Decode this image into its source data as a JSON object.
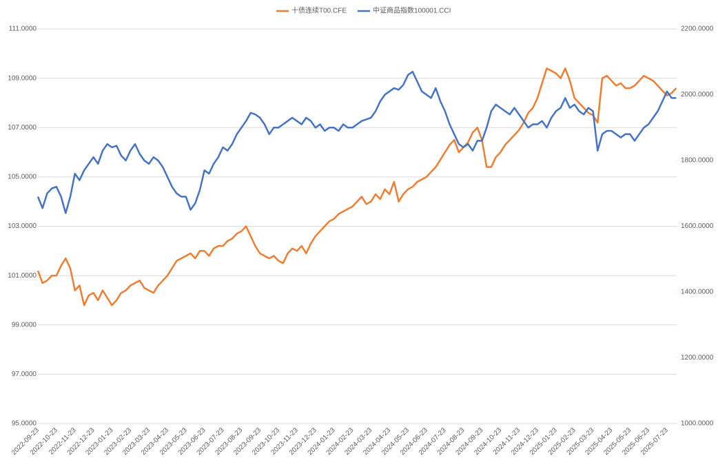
{
  "chart_data": {
    "type": "line",
    "categories": [
      "2022-09-23",
      null,
      null,
      null,
      "2022-10-23",
      null,
      null,
      null,
      "2022-11-23",
      null,
      null,
      null,
      "2022-12-23",
      null,
      null,
      null,
      "2023-01-23",
      null,
      null,
      null,
      "2023-02-23",
      null,
      null,
      null,
      "2023-03-23",
      null,
      null,
      null,
      "2023-04-23",
      null,
      null,
      null,
      "2023-05-23",
      null,
      null,
      null,
      "2023-06-23",
      null,
      null,
      null,
      "2023-07-23",
      null,
      null,
      null,
      "2023-08-23",
      null,
      null,
      null,
      "2023-09-23",
      null,
      null,
      null,
      "2023-10-23",
      null,
      null,
      null,
      "2023-11-23",
      null,
      null,
      null,
      "2023-12-23",
      null,
      null,
      null,
      "2024-01-23",
      null,
      null,
      null,
      "2024-02-23",
      null,
      null,
      null,
      "2024-03-23",
      null,
      null,
      null,
      "2024-04-23",
      null,
      null,
      null,
      "2024-05-23",
      null,
      null,
      null,
      "2024-06-23",
      null,
      null,
      null,
      "2024-07-23",
      null,
      null,
      null,
      "2024-08-23",
      null,
      null,
      null,
      "2024-09-23",
      null,
      null,
      null,
      "2024-10-23",
      null,
      null,
      null,
      "2024-11-23",
      null,
      null,
      null,
      "2024-12-23",
      null,
      null,
      null,
      "2025-01-23",
      null,
      null,
      null,
      "2025-02-23",
      null,
      null,
      null,
      "2025-03-23",
      null,
      null,
      null,
      "2025-04-23",
      null,
      null,
      null,
      "2025-05-23",
      null,
      null,
      null,
      "2025-06-23",
      null,
      null,
      null,
      "2025-07-23",
      null,
      null
    ],
    "series": [
      {
        "name": "十债连续T00.CFE",
        "color": "#ed7d31",
        "axis": "y",
        "values": [
          101.2,
          100.7,
          100.8,
          101.0,
          101.0,
          101.4,
          101.7,
          101.3,
          100.4,
          100.6,
          99.8,
          100.2,
          100.3,
          100.0,
          100.4,
          100.1,
          99.8,
          100.0,
          100.3,
          100.4,
          100.6,
          100.7,
          100.8,
          100.5,
          100.4,
          100.3,
          100.6,
          100.8,
          101.0,
          101.3,
          101.6,
          101.7,
          101.8,
          101.9,
          101.7,
          102.0,
          102.0,
          101.8,
          102.1,
          102.2,
          102.2,
          102.4,
          102.5,
          102.7,
          102.8,
          103.0,
          102.6,
          102.2,
          101.9,
          101.8,
          101.7,
          101.8,
          101.6,
          101.5,
          101.9,
          102.1,
          102.0,
          102.2,
          101.9,
          102.3,
          102.6,
          102.8,
          103.0,
          103.2,
          103.3,
          103.5,
          103.6,
          103.7,
          103.8,
          104.0,
          104.2,
          103.9,
          104.0,
          104.3,
          104.1,
          104.5,
          104.3,
          104.8,
          104.0,
          104.3,
          104.5,
          104.6,
          104.8,
          104.9,
          105.0,
          105.2,
          105.4,
          105.7,
          106.0,
          106.3,
          106.5,
          106.0,
          106.2,
          106.4,
          106.8,
          107.0,
          106.5,
          105.4,
          105.4,
          105.8,
          106.0,
          106.3,
          106.5,
          106.7,
          106.9,
          107.2,
          107.6,
          107.8,
          108.2,
          108.8,
          109.4,
          109.3,
          109.2,
          109.0,
          109.4,
          108.9,
          108.2,
          108.0,
          107.8,
          107.6,
          107.5,
          107.2,
          109.0,
          109.1,
          108.9,
          108.7,
          108.8,
          108.6,
          108.6,
          108.7,
          108.9,
          109.1,
          109.0,
          108.9,
          108.7,
          108.5,
          108.3,
          108.4,
          108.6
        ]
      },
      {
        "name": "中证商品指数100001.CCI",
        "color": "#4472c4",
        "axis": "y2",
        "values": [
          1690,
          1655,
          1700,
          1715,
          1720,
          1690,
          1640,
          1690,
          1760,
          1740,
          1770,
          1790,
          1810,
          1790,
          1830,
          1850,
          1840,
          1845,
          1815,
          1800,
          1830,
          1850,
          1820,
          1800,
          1790,
          1810,
          1800,
          1780,
          1750,
          1720,
          1700,
          1690,
          1690,
          1650,
          1670,
          1710,
          1770,
          1760,
          1790,
          1810,
          1840,
          1830,
          1850,
          1880,
          1900,
          1920,
          1945,
          1940,
          1930,
          1910,
          1880,
          1900,
          1900,
          1910,
          1920,
          1930,
          1920,
          1910,
          1930,
          1920,
          1900,
          1910,
          1890,
          1900,
          1900,
          1890,
          1910,
          1900,
          1900,
          1910,
          1920,
          1925,
          1930,
          1950,
          1980,
          2000,
          2010,
          2020,
          2015,
          2030,
          2060,
          2070,
          2040,
          2010,
          2000,
          1990,
          2020,
          1980,
          1950,
          1910,
          1880,
          1850,
          1840,
          1850,
          1830,
          1860,
          1860,
          1900,
          1950,
          1970,
          1960,
          1950,
          1940,
          1960,
          1940,
          1920,
          1900,
          1910,
          1910,
          1920,
          1900,
          1930,
          1950,
          1960,
          1990,
          1960,
          1970,
          1950,
          1940,
          1960,
          1950,
          1830,
          1880,
          1890,
          1890,
          1880,
          1870,
          1880,
          1880,
          1860,
          1880,
          1900,
          1910,
          1930,
          1950,
          1980,
          2010,
          1990,
          1990
        ]
      }
    ],
    "ylim": [
      95,
      111
    ],
    "yticks": [
      {
        "value": 95,
        "label": "95.0000"
      },
      {
        "value": 97,
        "label": "97.0000"
      },
      {
        "value": 99,
        "label": "99.0000"
      },
      {
        "value": 101,
        "label": "101.0000"
      },
      {
        "value": 103,
        "label": "103.0000"
      },
      {
        "value": 105,
        "label": "105.0000"
      },
      {
        "value": 107,
        "label": "107.0000"
      },
      {
        "value": 109,
        "label": "109.0000"
      },
      {
        "value": 111,
        "label": "111.0000"
      }
    ],
    "y2lim": [
      1000,
      2200
    ],
    "y2ticks": [
      {
        "value": 1000,
        "label": "1000.0000"
      },
      {
        "value": 1200,
        "label": "1200.0000"
      },
      {
        "value": 1400,
        "label": "1400.0000"
      },
      {
        "value": 1600,
        "label": "1600.0000"
      },
      {
        "value": 1800,
        "label": "1800.0000"
      },
      {
        "value": 2000,
        "label": "2000.0000"
      },
      {
        "value": 2200,
        "label": "2200.0000"
      }
    ],
    "grid": true,
    "legend": "top"
  }
}
